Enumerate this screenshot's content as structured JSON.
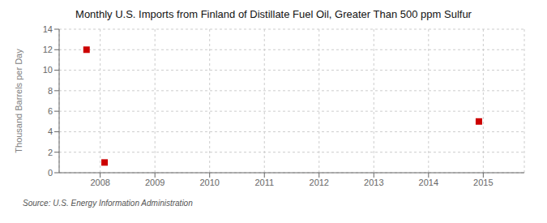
{
  "chart_data": {
    "type": "scatter",
    "title": "Monthly U.S. Imports from Finland of Distillate Fuel Oil, Greater Than 500 ppm Sulfur",
    "ylabel": "Thousand Barrels per Day",
    "annotations": [
      "Source: U.S. Energy Information Administration"
    ],
    "x": [
      2007.75,
      2008.08,
      2014.92
    ],
    "values": [
      12.0,
      1.0,
      5.0
    ],
    "color": "#cc0000",
    "marker": "square",
    "xlim": [
      2007.25,
      2015.75
    ],
    "ylim": [
      0,
      14
    ],
    "xticks": [
      2008,
      2009,
      2010,
      2011,
      2012,
      2013,
      2014,
      2015
    ],
    "yticks": [
      0,
      2,
      4,
      6,
      8,
      10,
      12,
      14
    ],
    "grid": true
  }
}
